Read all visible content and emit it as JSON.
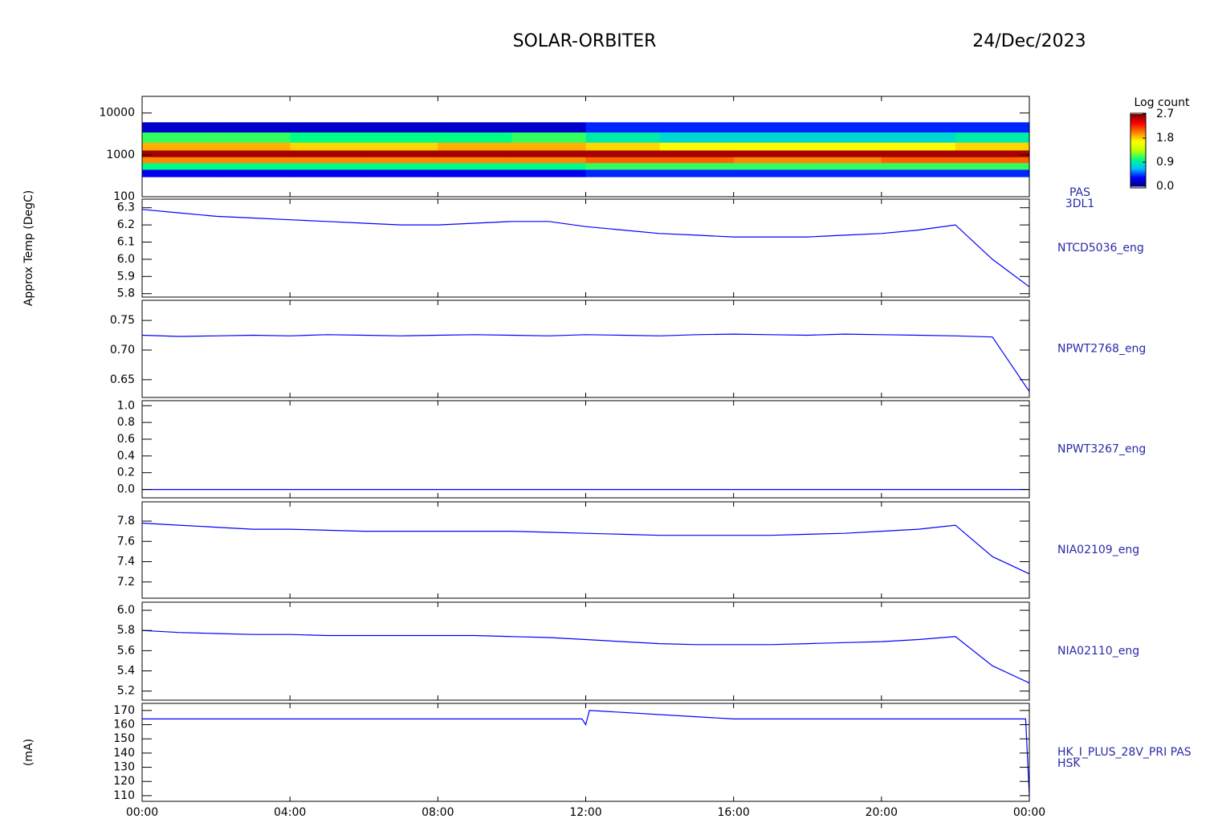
{
  "title": "SOLAR-ORBITER",
  "date": "24/Dec/2023",
  "time_axis": {
    "xlim": [
      0,
      24
    ],
    "xticks": [
      {
        "value": 0,
        "label": "00:00"
      },
      {
        "value": 4,
        "label": "04:00"
      },
      {
        "value": 8,
        "label": "08:00"
      },
      {
        "value": 12,
        "label": "12:00"
      },
      {
        "value": 16,
        "label": "16:00"
      },
      {
        "value": 20,
        "label": "20:00"
      },
      {
        "value": 24,
        "label": "00:00"
      }
    ]
  },
  "colorbar": {
    "title": "Log count",
    "clim": [
      0,
      2.7
    ],
    "ticks": [
      {
        "value": 0,
        "label": "0.0"
      },
      0.9,
      1.8,
      2.7
    ],
    "colors": [
      "#000080",
      "#0000ff",
      "#00c0ff",
      "#00ff80",
      "#c0ff00",
      "#ffff00",
      "#ff8000",
      "#ff0000",
      "#800000"
    ]
  },
  "chart_data": [
    {
      "type": "heatmap",
      "log": true,
      "ylim": [
        100,
        25000
      ],
      "yticks": [
        100,
        1000,
        10000
      ],
      "labels": [
        "PAS",
        "3DL1"
      ],
      "x_edges": [
        0,
        2,
        4,
        6,
        8,
        10,
        12,
        14,
        16,
        18,
        20,
        22,
        24
      ],
      "y_edges": [
        300,
        450,
        650,
        900,
        1300,
        2000,
        3500,
        6000
      ],
      "values": [
        [
          0.3,
          0.3,
          0.3,
          0.3,
          0.3,
          0.3,
          0.4,
          0.4,
          0.4,
          0.4,
          0.4,
          0.4
        ],
        [
          1.0,
          1.0,
          1.0,
          1.0,
          1.0,
          1.0,
          1.1,
          1.1,
          1.1,
          1.1,
          1.1,
          1.1
        ],
        [
          2.0,
          2.0,
          2.0,
          2.0,
          2.0,
          2.0,
          2.1,
          2.1,
          2.0,
          2.0,
          2.1,
          2.1
        ],
        [
          2.6,
          2.6,
          2.6,
          2.6,
          2.6,
          2.6,
          2.6,
          2.6,
          2.6,
          2.6,
          2.6,
          2.6
        ],
        [
          1.9,
          1.9,
          1.8,
          1.8,
          1.9,
          1.9,
          1.8,
          1.7,
          1.7,
          1.7,
          1.7,
          1.8
        ],
        [
          1.1,
          1.1,
          1.0,
          1.0,
          1.0,
          1.1,
          0.9,
          0.8,
          0.8,
          0.8,
          0.8,
          0.9
        ],
        [
          0.2,
          0.2,
          0.2,
          0.2,
          0.2,
          0.2,
          0.4,
          0.4,
          0.4,
          0.4,
          0.4,
          0.4
        ]
      ]
    },
    {
      "type": "line",
      "ylabel": "Approx Temp (DegC)",
      "ylim": [
        5.78,
        6.35
      ],
      "yticks": [
        5.8,
        5.9,
        {
          "value": 6,
          "label": "6.0"
        },
        6.1,
        6.2,
        6.3
      ],
      "labels": [
        "NTCD5036_eng"
      ],
      "color": "#0000ff",
      "x": [
        0,
        1,
        2,
        3,
        4,
        5,
        6,
        7,
        8,
        9,
        10,
        11,
        12,
        13,
        14,
        15,
        16,
        17,
        18,
        19,
        20,
        21,
        22,
        23,
        24
      ],
      "values": [
        6.29,
        6.27,
        6.25,
        6.24,
        6.23,
        6.22,
        6.21,
        6.2,
        6.2,
        6.21,
        6.22,
        6.22,
        6.19,
        6.17,
        6.15,
        6.14,
        6.13,
        6.13,
        6.13,
        6.14,
        6.15,
        6.17,
        6.2,
        6.0,
        5.84
      ]
    },
    {
      "type": "line",
      "ylim": [
        0.62,
        0.784
      ],
      "yticks": [
        0.65,
        {
          "value": 0.7,
          "label": "0.70"
        },
        0.75
      ],
      "labels": [
        "NPWT2768_eng"
      ],
      "color": "#0000ff",
      "x": [
        0,
        1,
        2,
        3,
        4,
        5,
        6,
        7,
        8,
        9,
        10,
        11,
        12,
        13,
        14,
        15,
        16,
        17,
        18,
        19,
        20,
        21,
        22,
        23,
        24
      ],
      "values": [
        0.725,
        0.723,
        0.724,
        0.725,
        0.724,
        0.726,
        0.725,
        0.724,
        0.725,
        0.726,
        0.725,
        0.724,
        0.726,
        0.725,
        0.724,
        0.726,
        0.727,
        0.726,
        0.725,
        0.727,
        0.726,
        0.725,
        0.724,
        0.722,
        0.63
      ]
    },
    {
      "type": "line",
      "ylim": [
        -0.1,
        1.06
      ],
      "yticks": [
        {
          "value": 0,
          "label": "0.0"
        },
        0.2,
        0.4,
        0.6,
        0.8,
        {
          "value": 1,
          "label": "1.0"
        }
      ],
      "labels": [
        "NPWT3267_eng"
      ],
      "color": "#0000ff",
      "x": [
        0,
        24
      ],
      "values": [
        0,
        0
      ]
    },
    {
      "type": "line",
      "ylim": [
        7.04,
        7.99
      ],
      "yticks": [
        7.2,
        7.4,
        7.6,
        7.8
      ],
      "labels": [
        "NIA02109_eng"
      ],
      "color": "#0000ff",
      "x": [
        0,
        1,
        2,
        3,
        4,
        5,
        6,
        7,
        8,
        9,
        10,
        11,
        12,
        13,
        14,
        15,
        16,
        17,
        18,
        19,
        20,
        21,
        22,
        23,
        24
      ],
      "values": [
        7.78,
        7.76,
        7.74,
        7.72,
        7.72,
        7.71,
        7.7,
        7.7,
        7.7,
        7.7,
        7.7,
        7.69,
        7.68,
        7.67,
        7.66,
        7.66,
        7.66,
        7.66,
        7.67,
        7.68,
        7.7,
        7.72,
        7.76,
        7.45,
        7.28
      ]
    },
    {
      "type": "line",
      "ylim": [
        5.11,
        6.08
      ],
      "yticks": [
        5.2,
        5.4,
        5.6,
        5.8,
        {
          "value": 6,
          "label": "6.0"
        }
      ],
      "labels": [
        "NIA02110_eng"
      ],
      "color": "#0000ff",
      "x": [
        0,
        1,
        2,
        3,
        4,
        5,
        6,
        7,
        8,
        9,
        10,
        11,
        12,
        13,
        14,
        15,
        16,
        17,
        18,
        19,
        20,
        21,
        22,
        23,
        24
      ],
      "values": [
        5.8,
        5.78,
        5.77,
        5.76,
        5.76,
        5.75,
        5.75,
        5.75,
        5.75,
        5.75,
        5.74,
        5.73,
        5.71,
        5.69,
        5.67,
        5.66,
        5.66,
        5.66,
        5.67,
        5.68,
        5.69,
        5.71,
        5.74,
        5.45,
        5.28
      ]
    },
    {
      "type": "line",
      "ylabel": "(mA)",
      "ylim": [
        106,
        175
      ],
      "yticks": [
        110,
        120,
        130,
        140,
        150,
        160,
        170
      ],
      "labels": [
        "HK_I_PLUS_28V_PRI PAS",
        "HSK"
      ],
      "color": "#0000ff",
      "x": [
        0,
        4,
        8,
        11.9,
        12,
        12.1,
        16,
        20,
        23.9,
        24
      ],
      "values": [
        164,
        164,
        164,
        164,
        160,
        170,
        164,
        164,
        164,
        110
      ]
    }
  ]
}
